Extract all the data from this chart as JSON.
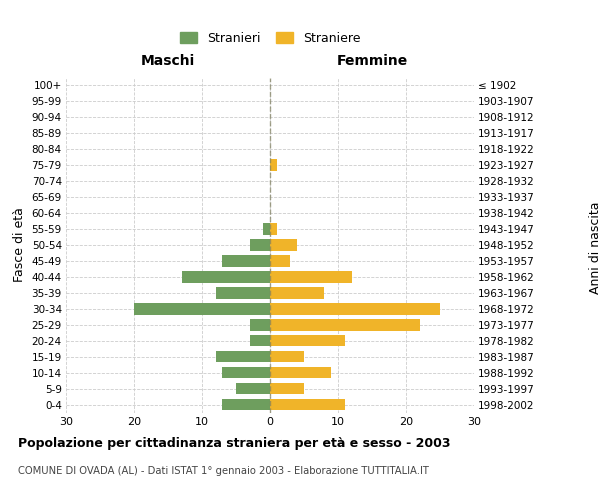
{
  "age_groups": [
    "0-4",
    "5-9",
    "10-14",
    "15-19",
    "20-24",
    "25-29",
    "30-34",
    "35-39",
    "40-44",
    "45-49",
    "50-54",
    "55-59",
    "60-64",
    "65-69",
    "70-74",
    "75-79",
    "80-84",
    "85-89",
    "90-94",
    "95-99",
    "100+"
  ],
  "birth_years": [
    "1998-2002",
    "1993-1997",
    "1988-1992",
    "1983-1987",
    "1978-1982",
    "1973-1977",
    "1968-1972",
    "1963-1967",
    "1958-1962",
    "1953-1957",
    "1948-1952",
    "1943-1947",
    "1938-1942",
    "1933-1937",
    "1928-1932",
    "1923-1927",
    "1918-1922",
    "1913-1917",
    "1908-1912",
    "1903-1907",
    "≤ 1902"
  ],
  "males": [
    7,
    5,
    7,
    8,
    3,
    3,
    20,
    8,
    13,
    7,
    3,
    1,
    0,
    0,
    0,
    0,
    0,
    0,
    0,
    0,
    0
  ],
  "females": [
    11,
    5,
    9,
    5,
    11,
    22,
    25,
    8,
    12,
    3,
    4,
    1,
    0,
    0,
    0,
    1,
    0,
    0,
    0,
    0,
    0
  ],
  "male_color": "#6e9e5e",
  "female_color": "#f0b429",
  "center_line_color": "#808060",
  "grid_color": "#cccccc",
  "bg_color": "#ffffff",
  "title": "Popolazione per cittadinanza straniera per età e sesso - 2003",
  "subtitle": "COMUNE DI OVADA (AL) - Dati ISTAT 1° gennaio 2003 - Elaborazione TUTTITALIA.IT",
  "legend_stranieri": "Stranieri",
  "legend_straniere": "Straniere",
  "xlabel_left": "Maschi",
  "xlabel_right": "Femmine",
  "ylabel_left": "Fasce di età",
  "ylabel_right": "Anni di nascita",
  "xlim": 30
}
